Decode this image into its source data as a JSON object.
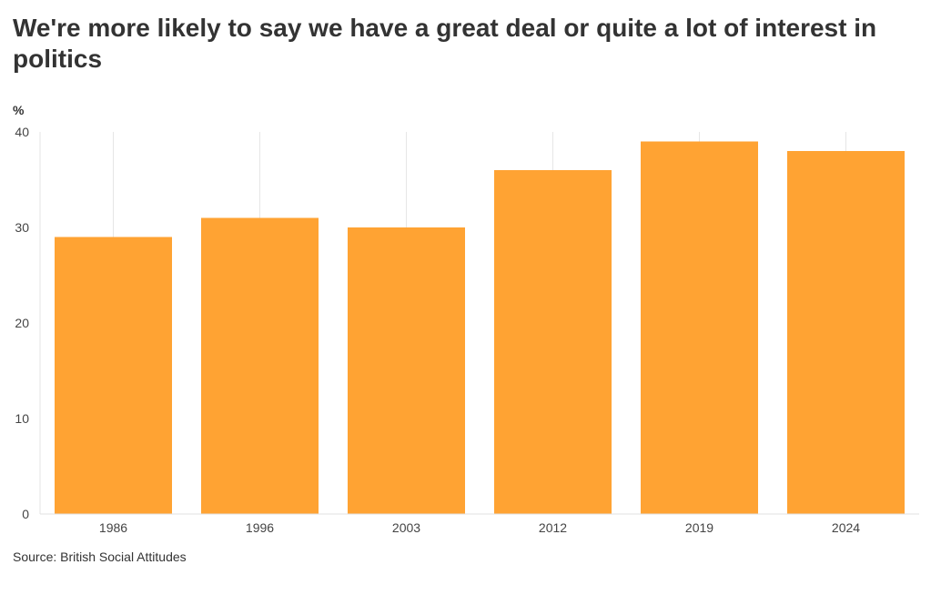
{
  "chart_data": {
    "type": "bar",
    "title": "We're more likely to say we have a great deal or quite a lot of interest in politics",
    "ylabel": "%",
    "xlabel": "",
    "categories": [
      "1986",
      "1996",
      "2003",
      "2012",
      "2019",
      "2024"
    ],
    "values": [
      29,
      31,
      30,
      36,
      39,
      38
    ],
    "ylim": [
      0,
      40
    ],
    "yticks": [
      "0",
      "10",
      "20",
      "30",
      "40"
    ],
    "grid": "vertical",
    "legend": "none",
    "source": "Source: British Social Attitudes"
  },
  "colors": {
    "bar": "#ffa333",
    "grid": "#e6e6e6",
    "axis": "#e0e0e0",
    "text": "#333333",
    "tick_text": "#444444"
  }
}
